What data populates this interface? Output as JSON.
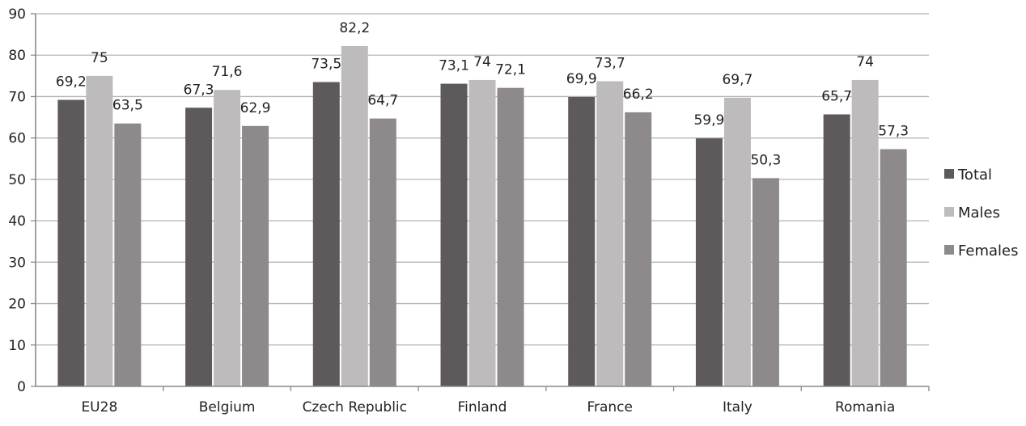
{
  "chart_data": {
    "type": "bar",
    "title": "",
    "xlabel": "",
    "ylabel": "",
    "ylim": [
      0,
      90
    ],
    "yticks": [
      0,
      10,
      20,
      30,
      40,
      50,
      60,
      70,
      80,
      90
    ],
    "grid": true,
    "legend_position": "right",
    "categories": [
      "EU28",
      "Belgium",
      "Czech Republic",
      "Finland",
      "France",
      "Italy",
      "Romania"
    ],
    "series": [
      {
        "name": "Total",
        "color": "#5e5a5b",
        "values": [
          69.2,
          67.3,
          73.5,
          73.1,
          69.9,
          59.9,
          65.7
        ],
        "labels": [
          "69,2",
          "67,3",
          "73,5",
          "73,1",
          "69,9",
          "59,9",
          "65,7"
        ]
      },
      {
        "name": "Males",
        "color": "#bdbbbc",
        "values": [
          75,
          71.6,
          82.2,
          74,
          73.7,
          69.7,
          74
        ],
        "labels": [
          "75",
          "71,6",
          "82,2",
          "74",
          "73,7",
          "69,7",
          "74"
        ]
      },
      {
        "name": "Females",
        "color": "#8e8a8b",
        "values": [
          63.5,
          62.9,
          64.7,
          72.1,
          66.2,
          50.3,
          57.3
        ],
        "labels": [
          "63,5",
          "62,9",
          "64,7",
          "72,1",
          "66,2",
          "50,3",
          "57,3"
        ]
      }
    ]
  }
}
